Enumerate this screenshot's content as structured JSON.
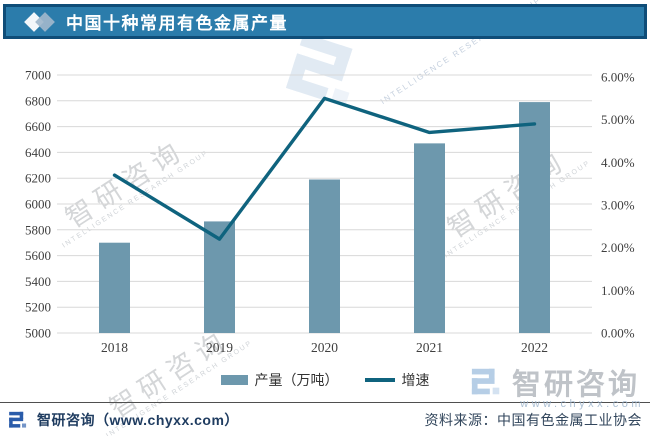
{
  "header": {
    "title": "中国十种常用有色金属产量"
  },
  "chart_data": {
    "type": "bar",
    "categories": [
      "2018",
      "2019",
      "2020",
      "2021",
      "2022"
    ],
    "series": [
      {
        "name": "产量（万吨）",
        "type": "bar",
        "axis": "left",
        "color": "#6d98ad",
        "values": [
          5700,
          5865,
          6190,
          6470,
          6790
        ]
      },
      {
        "name": "增速",
        "type": "line",
        "axis": "right",
        "color": "#0f637e",
        "values": [
          3.7,
          2.2,
          5.5,
          4.7,
          4.9
        ]
      }
    ],
    "left_axis": {
      "min": 5000,
      "max": 7000,
      "step": 200,
      "ticks": [
        "5000",
        "5200",
        "5400",
        "5600",
        "5800",
        "6000",
        "6200",
        "6400",
        "6600",
        "6800",
        "7000"
      ]
    },
    "right_axis": {
      "min": 0,
      "max": 6,
      "step": 1,
      "ticks": [
        "0.00%",
        "1.00%",
        "2.00%",
        "3.00%",
        "4.00%",
        "5.00%",
        "6.00%"
      ]
    },
    "grid": true,
    "grid_color": "#d8d8d8",
    "tick_color": "#3f3f3f",
    "legend_position": "bottom",
    "title": "中国十种常用有色金属产量"
  },
  "legend": {
    "bar_label": "产量（万吨）",
    "line_label": "增速"
  },
  "footer": {
    "brand": "智研咨询（www.chyxx.com）",
    "source": "资料来源：中国有色金属工业协会"
  },
  "watermarks": {
    "brand_cn": "智研咨询",
    "brand_sub": "INTELLIGENCE RESEARCH GROUP",
    "url": "www.chyxx.com"
  }
}
